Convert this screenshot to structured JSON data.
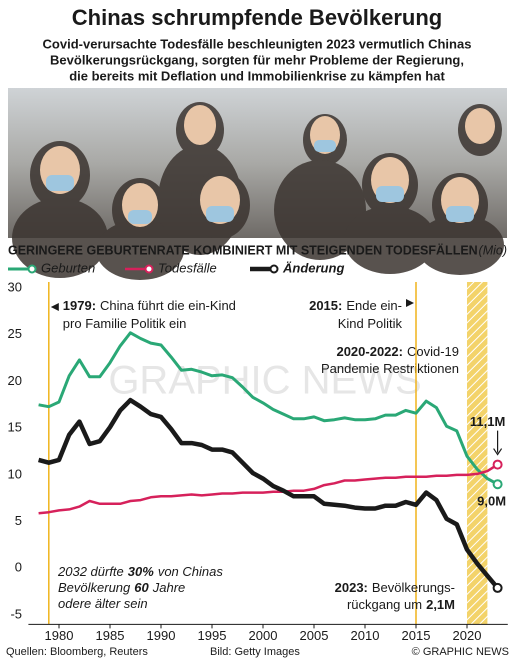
{
  "chart_data": {
    "type": "line",
    "title": "Chinas schrumpfende Bevölkerung",
    "subtitle": [
      "Covid-verursachte Todesfälle beschleunigten 2023 vermutlich Chinas",
      "Bevölkerungsrückgang, sorgten für mehr Probleme der Regierung,",
      "die bereits mit Deflation und Immobilienkrise zu kämpfen hat"
    ],
    "chart_title": "GERINGERE GEBURTENRATE KOMBINIERT MIT STEIGENDEN TODESFÄLLEN",
    "unit": "(Mio)",
    "x": [
      1978,
      1979,
      1980,
      1981,
      1982,
      1983,
      1984,
      1985,
      1986,
      1987,
      1988,
      1989,
      1990,
      1991,
      1992,
      1993,
      1994,
      1995,
      1996,
      1997,
      1998,
      1999,
      2000,
      2001,
      2002,
      2003,
      2004,
      2005,
      2006,
      2007,
      2008,
      2009,
      2010,
      2011,
      2012,
      2013,
      2014,
      2015,
      2016,
      2017,
      2018,
      2019,
      2020,
      2021,
      2022,
      2023
    ],
    "series": [
      {
        "name": "Geburten",
        "color": "#2aa876",
        "values": [
          17.5,
          17.3,
          17.8,
          20.6,
          22.3,
          20.5,
          20.5,
          22.0,
          23.8,
          25.2,
          24.6,
          24.1,
          23.9,
          22.6,
          21.2,
          21.3,
          21.0,
          20.6,
          20.7,
          20.4,
          19.4,
          18.3,
          17.7,
          17.0,
          16.5,
          16.0,
          16.0,
          16.2,
          15.8,
          15.9,
          16.1,
          15.9,
          15.9,
          16.0,
          16.4,
          16.4,
          16.9,
          16.6,
          17.9,
          17.2,
          15.2,
          14.7,
          12.0,
          10.6,
          9.6,
          9.0
        ],
        "value_labels": [
          null,
          null,
          null,
          null,
          null,
          null,
          null,
          null,
          null,
          null,
          null,
          null,
          null,
          null,
          null,
          null,
          null,
          null,
          null,
          null,
          null,
          null,
          null,
          null,
          null,
          null,
          null,
          null,
          null,
          null,
          null,
          null,
          null,
          null,
          null,
          null,
          null,
          null,
          null,
          null,
          null,
          null,
          null,
          null,
          null,
          "9,0M"
        ]
      },
      {
        "name": "Todesfälle",
        "color": "#d6215b",
        "values": [
          5.9,
          6.0,
          6.2,
          6.3,
          6.6,
          7.2,
          6.9,
          6.9,
          6.9,
          7.2,
          7.3,
          7.6,
          7.7,
          7.7,
          7.8,
          7.9,
          7.8,
          7.9,
          8.0,
          8.0,
          8.1,
          8.1,
          8.1,
          8.2,
          8.2,
          8.3,
          8.3,
          8.5,
          8.9,
          9.1,
          9.4,
          9.4,
          9.5,
          9.6,
          9.7,
          9.7,
          9.8,
          9.8,
          9.8,
          9.9,
          9.9,
          10.0,
          10.0,
          10.1,
          10.4,
          11.1
        ],
        "value_labels": [
          null,
          null,
          null,
          null,
          null,
          null,
          null,
          null,
          null,
          null,
          null,
          null,
          null,
          null,
          null,
          null,
          null,
          null,
          null,
          null,
          null,
          null,
          null,
          null,
          null,
          null,
          null,
          null,
          null,
          null,
          null,
          null,
          null,
          null,
          null,
          null,
          null,
          null,
          null,
          null,
          null,
          null,
          null,
          null,
          null,
          "11,1M"
        ]
      },
      {
        "name": "Änderung",
        "color": "#1a1a1a",
        "values": [
          11.6,
          11.3,
          11.6,
          14.3,
          15.7,
          13.3,
          13.6,
          15.1,
          16.9,
          18.0,
          17.3,
          16.5,
          16.2,
          14.9,
          13.4,
          13.4,
          13.2,
          12.7,
          12.7,
          12.4,
          11.3,
          10.2,
          9.6,
          8.8,
          8.3,
          7.7,
          7.7,
          7.7,
          6.9,
          6.8,
          6.7,
          6.5,
          6.4,
          6.4,
          6.7,
          6.7,
          7.1,
          6.8,
          8.1,
          7.3,
          5.3,
          4.7,
          2.0,
          0.5,
          -0.8,
          -2.1
        ]
      }
    ],
    "xlim": [
      1977,
      2024
    ],
    "xticks": [
      1980,
      1985,
      1990,
      1995,
      2000,
      2005,
      2010,
      2015,
      2020
    ],
    "ylim": [
      -6,
      30
    ],
    "yticks": [
      30,
      25,
      20,
      15,
      10,
      5,
      0,
      -5
    ],
    "markers": [
      {
        "x": 1979,
        "lines": [
          [
            {
              "text": "1979:",
              "bold": true
            },
            {
              "text": "China führt die ein-Kind"
            }
          ],
          [
            {
              "text": "pro Familie Politik ein"
            }
          ]
        ]
      },
      {
        "x": 2015,
        "lines": [
          [
            {
              "text": "2015:",
              "bold": true
            },
            {
              "text": "Ende ein-"
            }
          ],
          [
            {
              "text": "Kind Politik"
            }
          ]
        ]
      }
    ],
    "band": {
      "from": 2020,
      "to": 2022,
      "lines": [
        [
          {
            "text": "2020-2022:",
            "bold": true
          },
          {
            "text": "Covid-19"
          }
        ],
        [
          {
            "text": "Pandemie Restriktionen"
          }
        ]
      ]
    },
    "end_note": [
      [
        {
          "text": "2023:",
          "bold": true
        },
        {
          "text": "Bevölkerungs-"
        }
      ],
      [
        {
          "text": "rückgang um"
        },
        {
          "text": "2,1M",
          "bold": true
        }
      ]
    ],
    "note": [
      [
        {
          "text": "2032 dürfte"
        },
        {
          "text": "30%",
          "bold": true
        },
        {
          "text": "von Chinas"
        }
      ],
      [
        {
          "text": "Bevölkerung"
        },
        {
          "text": "60",
          "bold": true
        },
        {
          "text": "Jahre"
        }
      ],
      [
        {
          "text": "odere älter sein"
        }
      ]
    ],
    "watermark": "GRAPHIC NEWS",
    "source": "Quellen: Bloomberg, Reuters",
    "credit": "Bild: Getty Images",
    "copyright": "© GRAPHIC NEWS"
  }
}
